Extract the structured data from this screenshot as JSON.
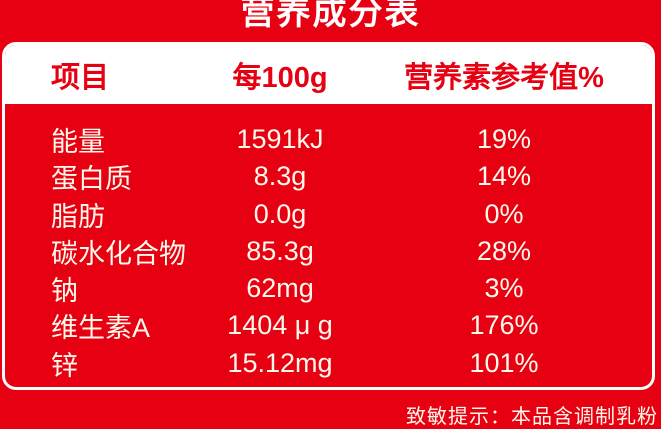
{
  "title": "营养成分表",
  "table": {
    "headers": [
      "项目",
      "每100g",
      "营养素参考值%"
    ],
    "rows": [
      {
        "item": "能量",
        "per100g": "1591kJ",
        "nrv": "19%"
      },
      {
        "item": "蛋白质",
        "per100g": "8.3g",
        "nrv": "14%"
      },
      {
        "item": "脂肪",
        "per100g": "0.0g",
        "nrv": "0%"
      },
      {
        "item": "碳水化合物",
        "per100g": "85.3g",
        "nrv": "28%"
      },
      {
        "item": "钠",
        "per100g": "62mg",
        "nrv": "3%"
      },
      {
        "item": "维生素A",
        "per100g": "1404 μ g",
        "nrv": "176%"
      },
      {
        "item": "锌",
        "per100g": "15.12mg",
        "nrv": "101%"
      }
    ]
  },
  "footer": {
    "allergy_note": "致敏提示：本品含调制乳粉"
  },
  "colors": {
    "background_red": "#E60012",
    "header_text_red": "#E60012",
    "body_text_cream": "#FFF9EC",
    "card_border_white": "#FFFFFF"
  }
}
